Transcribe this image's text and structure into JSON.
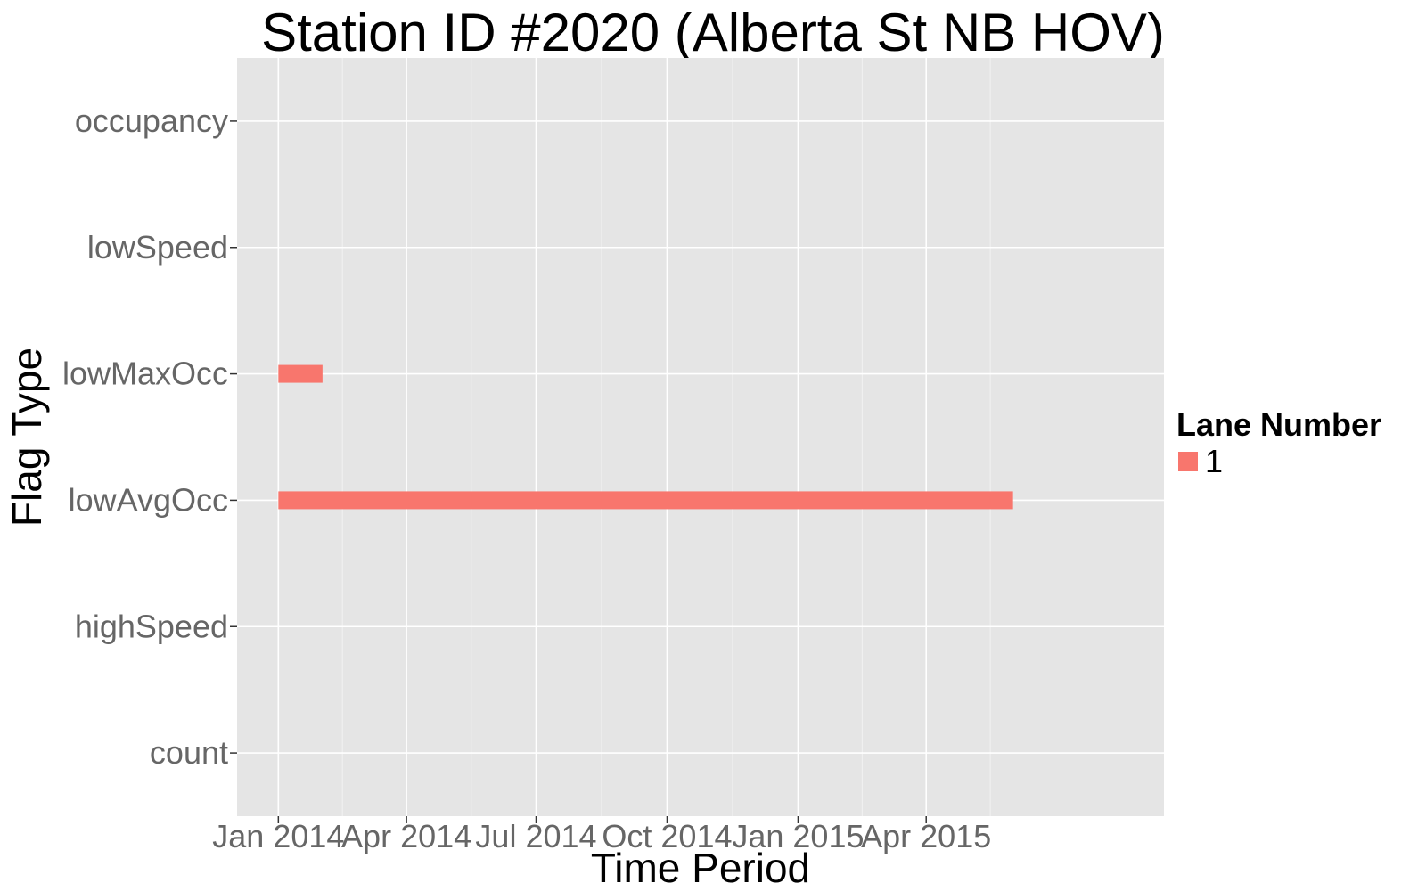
{
  "chart_data": {
    "type": "bar",
    "title": "Station ID #2020 (Alberta St NB HOV)",
    "xlabel": "Time Period",
    "ylabel": "Flag Type",
    "x_type": "date",
    "xlim": [
      "2013-12-03",
      "2015-09-15"
    ],
    "x_ticks": [
      {
        "date": "2014-01-01",
        "label": "Jan 2014"
      },
      {
        "date": "2014-04-01",
        "label": "Apr 2014"
      },
      {
        "date": "2014-07-01",
        "label": "Jul 2014"
      },
      {
        "date": "2014-10-01",
        "label": "Oct 2014"
      },
      {
        "date": "2015-01-01",
        "label": "Jan 2015"
      },
      {
        "date": "2015-04-01",
        "label": "Apr 2015"
      }
    ],
    "categories": [
      "count",
      "highSpeed",
      "lowAvgOcc",
      "lowMaxOcc",
      "lowSpeed",
      "occupancy"
    ],
    "series": [
      {
        "name": "1",
        "color": "#F8766D",
        "segments": [
          {
            "category": "lowMaxOcc",
            "start": "2014-01-01",
            "end": "2014-02-01"
          },
          {
            "category": "lowAvgOcc",
            "start": "2014-01-01",
            "end": "2015-06-01"
          }
        ]
      }
    ],
    "grid": true,
    "panel_background": "#e5e5e5",
    "legend": {
      "title": "Lane Number",
      "position": "right"
    }
  }
}
